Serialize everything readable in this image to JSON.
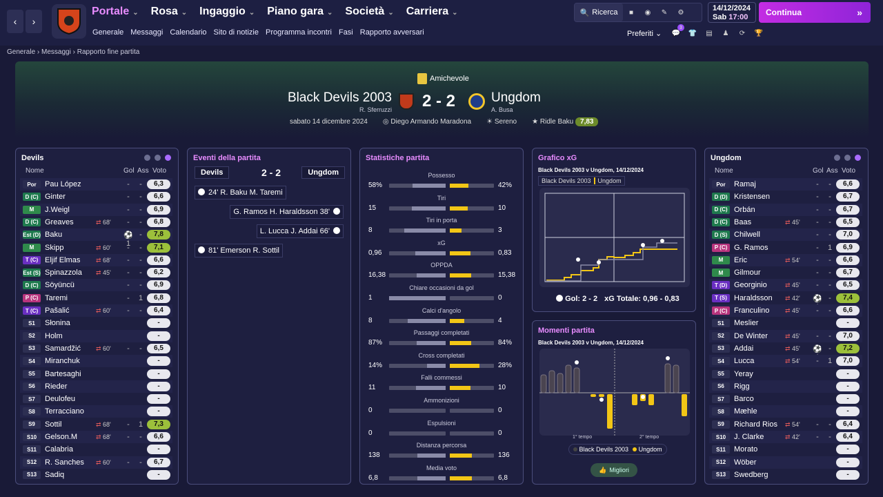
{
  "nav": {
    "menu": [
      "Portale",
      "Rosa",
      "Ingaggio",
      "Piano gara",
      "Società",
      "Carriera"
    ],
    "submenu": [
      "Generale",
      "Messaggi",
      "Calendario",
      "Sito di notizie",
      "Programma incontri",
      "Fasi",
      "Rapporto avversari"
    ],
    "search": "Ricerca",
    "date": "14/12/2024",
    "day": "Sab",
    "time": "17:00",
    "continue": "Continua",
    "preferiti": "Preferiti",
    "badge": "3"
  },
  "breadcrumb": [
    "Generale",
    "Messaggi",
    "Rapporto fine partita"
  ],
  "match": {
    "competition": "Amichevole",
    "home": "Black Devils 2003",
    "home_manager": "R. Sferruzzi",
    "away": "Ungdom",
    "away_manager": "A. Busa",
    "score": "2 - 2",
    "date": "sabato 14 dicembre 2024",
    "stadium": "Diego Armando Maradona",
    "weather": "Sereno",
    "potm": "Ridle Baku",
    "potm_rating": "7,83"
  },
  "headers": {
    "name": "Nome",
    "gol": "Gol",
    "ass": "Ass",
    "voto": "Voto"
  },
  "home_team": {
    "title": "Devils",
    "players": [
      {
        "pos": "Por",
        "cls": "por",
        "name": "Pau López",
        "sub": "",
        "gol": "-",
        "ass": "-",
        "voto": "6,3",
        "g": false
      },
      {
        "pos": "D (C)",
        "cls": "d",
        "name": "Ginter",
        "sub": "",
        "gol": "-",
        "ass": "-",
        "voto": "6,6",
        "g": false
      },
      {
        "pos": "M",
        "cls": "m",
        "name": "J.Weigl",
        "sub": "",
        "gol": "-",
        "ass": "-",
        "voto": "6,9",
        "g": false
      },
      {
        "pos": "D (C)",
        "cls": "d",
        "name": "Greaves",
        "sub": "68'",
        "gol": "-",
        "ass": "-",
        "voto": "6,8",
        "g": false
      },
      {
        "pos": "Est (D)",
        "cls": "d",
        "name": "Baku",
        "sub": "",
        "gol": "⚽1",
        "ass": "-",
        "voto": "7,8",
        "g": true
      },
      {
        "pos": "M",
        "cls": "m",
        "name": "Skipp",
        "sub": "60'",
        "gol": "-",
        "ass": "-",
        "voto": "7,1",
        "g": true
      },
      {
        "pos": "T (C)",
        "cls": "t",
        "name": "Eljif Elmas",
        "sub": "68'",
        "gol": "-",
        "ass": "-",
        "voto": "6,6",
        "g": false
      },
      {
        "pos": "Est (S)",
        "cls": "d",
        "name": "Spinazzola",
        "sub": "45'",
        "gol": "-",
        "ass": "-",
        "voto": "6,2",
        "g": false
      },
      {
        "pos": "D (C)",
        "cls": "d",
        "name": "Söyüncü",
        "sub": "",
        "gol": "-",
        "ass": "-",
        "voto": "6,9",
        "g": false
      },
      {
        "pos": "P (C)",
        "cls": "p",
        "name": "Taremi",
        "sub": "",
        "gol": "-",
        "ass": "1",
        "voto": "6,8",
        "g": false
      },
      {
        "pos": "T (C)",
        "cls": "t",
        "name": "Pašalić",
        "sub": "60'",
        "gol": "-",
        "ass": "-",
        "voto": "6,4",
        "g": false
      },
      {
        "pos": "S1",
        "cls": "s",
        "name": "Słonina",
        "sub": "",
        "gol": "",
        "ass": "",
        "voto": "-",
        "g": false
      },
      {
        "pos": "S2",
        "cls": "s",
        "name": "Holm",
        "sub": "",
        "gol": "",
        "ass": "",
        "voto": "-",
        "g": false
      },
      {
        "pos": "S3",
        "cls": "s",
        "name": "Samardžić",
        "sub": "60'",
        "gol": "-",
        "ass": "-",
        "voto": "6,5",
        "g": false
      },
      {
        "pos": "S4",
        "cls": "s",
        "name": "Miranchuk",
        "sub": "",
        "gol": "",
        "ass": "",
        "voto": "-",
        "g": false
      },
      {
        "pos": "S5",
        "cls": "s",
        "name": "Bartesaghi",
        "sub": "",
        "gol": "",
        "ass": "",
        "voto": "-",
        "g": false
      },
      {
        "pos": "S6",
        "cls": "s",
        "name": "Rieder",
        "sub": "",
        "gol": "",
        "ass": "",
        "voto": "-",
        "g": false
      },
      {
        "pos": "S7",
        "cls": "s",
        "name": "Deulofeu",
        "sub": "",
        "gol": "",
        "ass": "",
        "voto": "-",
        "g": false
      },
      {
        "pos": "S8",
        "cls": "s",
        "name": "Terracciano",
        "sub": "",
        "gol": "",
        "ass": "",
        "voto": "-",
        "g": false
      },
      {
        "pos": "S9",
        "cls": "s",
        "name": "Sottil",
        "sub": "68'",
        "gol": "-",
        "ass": "1",
        "voto": "7,3",
        "g": true
      },
      {
        "pos": "S10",
        "cls": "s",
        "name": "Gelson.M",
        "sub": "68'",
        "gol": "-",
        "ass": "-",
        "voto": "6,6",
        "g": false
      },
      {
        "pos": "S11",
        "cls": "s",
        "name": "Calabria",
        "sub": "",
        "gol": "",
        "ass": "",
        "voto": "-",
        "g": false
      },
      {
        "pos": "S12",
        "cls": "s",
        "name": "R. Sanches",
        "sub": "60'",
        "gol": "-",
        "ass": "-",
        "voto": "6,7",
        "g": false
      },
      {
        "pos": "S13",
        "cls": "s",
        "name": "Sadiq",
        "sub": "",
        "gol": "",
        "ass": "",
        "voto": "-",
        "g": false
      }
    ]
  },
  "away_team": {
    "title": "Ungdom",
    "players": [
      {
        "pos": "Por",
        "cls": "por",
        "name": "Ramaj",
        "sub": "",
        "gol": "-",
        "ass": "-",
        "voto": "6,6",
        "g": false
      },
      {
        "pos": "D (D)",
        "cls": "d",
        "name": "Kristensen",
        "sub": "",
        "gol": "-",
        "ass": "-",
        "voto": "6,7",
        "g": false
      },
      {
        "pos": "D (C)",
        "cls": "d",
        "name": "Orbán",
        "sub": "",
        "gol": "-",
        "ass": "-",
        "voto": "6,7",
        "g": false
      },
      {
        "pos": "D (C)",
        "cls": "d",
        "name": "Baas",
        "sub": "45'",
        "gol": "-",
        "ass": "-",
        "voto": "6,5",
        "g": false
      },
      {
        "pos": "D (S)",
        "cls": "d",
        "name": "Chilwell",
        "sub": "",
        "gol": "-",
        "ass": "-",
        "voto": "7,0",
        "g": false
      },
      {
        "pos": "P (C)",
        "cls": "p",
        "name": "G. Ramos",
        "sub": "",
        "gol": "-",
        "ass": "1",
        "voto": "6,9",
        "g": false
      },
      {
        "pos": "M",
        "cls": "m",
        "name": "Eric",
        "sub": "54'",
        "gol": "-",
        "ass": "-",
        "voto": "6,6",
        "g": false
      },
      {
        "pos": "M",
        "cls": "m",
        "name": "Gilmour",
        "sub": "",
        "gol": "-",
        "ass": "-",
        "voto": "6,7",
        "g": false
      },
      {
        "pos": "T (D)",
        "cls": "t",
        "name": "Georginio",
        "sub": "45'",
        "gol": "-",
        "ass": "-",
        "voto": "6,5",
        "g": false
      },
      {
        "pos": "T (S)",
        "cls": "t",
        "name": "Haraldsson",
        "sub": "42'",
        "gol": "⚽1",
        "ass": "-",
        "voto": "7,4",
        "g": true
      },
      {
        "pos": "P (C)",
        "cls": "p",
        "name": "Franculino",
        "sub": "45'",
        "gol": "-",
        "ass": "-",
        "voto": "6,6",
        "g": false
      },
      {
        "pos": "S1",
        "cls": "s",
        "name": "Meslier",
        "sub": "",
        "gol": "",
        "ass": "",
        "voto": "-",
        "g": false
      },
      {
        "pos": "S2",
        "cls": "s",
        "name": "De Winter",
        "sub": "45'",
        "gol": "-",
        "ass": "-",
        "voto": "7,0",
        "g": false
      },
      {
        "pos": "S3",
        "cls": "s",
        "name": "Addai",
        "sub": "45'",
        "gol": "⚽1",
        "ass": "-",
        "voto": "7,2",
        "g": true
      },
      {
        "pos": "S4",
        "cls": "s",
        "name": "Lucca",
        "sub": "54'",
        "gol": "-",
        "ass": "1",
        "voto": "7,0",
        "g": false
      },
      {
        "pos": "S5",
        "cls": "s",
        "name": "Yeray",
        "sub": "",
        "gol": "",
        "ass": "",
        "voto": "-",
        "g": false
      },
      {
        "pos": "S6",
        "cls": "s",
        "name": "Rigg",
        "sub": "",
        "gol": "",
        "ass": "",
        "voto": "-",
        "g": false
      },
      {
        "pos": "S7",
        "cls": "s",
        "name": "Barco",
        "sub": "",
        "gol": "",
        "ass": "",
        "voto": "-",
        "g": false
      },
      {
        "pos": "S8",
        "cls": "s",
        "name": "Mæhle",
        "sub": "",
        "gol": "",
        "ass": "",
        "voto": "-",
        "g": false
      },
      {
        "pos": "S9",
        "cls": "s",
        "name": "Richard Rios",
        "sub": "54'",
        "gol": "-",
        "ass": "-",
        "voto": "6,4",
        "g": false
      },
      {
        "pos": "S10",
        "cls": "s",
        "name": "J. Clarke",
        "sub": "42'",
        "gol": "-",
        "ass": "-",
        "voto": "6,4",
        "g": false
      },
      {
        "pos": "S11",
        "cls": "s",
        "name": "Morato",
        "sub": "",
        "gol": "",
        "ass": "",
        "voto": "-",
        "g": false
      },
      {
        "pos": "S12",
        "cls": "s",
        "name": "Wöber",
        "sub": "",
        "gol": "",
        "ass": "",
        "voto": "-",
        "g": false
      },
      {
        "pos": "S13",
        "cls": "s",
        "name": "Swedberg",
        "sub": "",
        "gol": "",
        "ass": "",
        "voto": "-",
        "g": false
      }
    ]
  },
  "events": {
    "title": "Eventi della partita",
    "home": "Devils",
    "away": "Ungdom",
    "score": "2 - 2",
    "items": [
      {
        "side": "home",
        "text": "24'  R. Baku  M. Taremi"
      },
      {
        "side": "away",
        "text": "G. Ramos  H. Haraldsson  38'"
      },
      {
        "side": "away",
        "text": "L. Lucca  J. Addai  66'"
      },
      {
        "side": "home",
        "text": "81'  Emerson  R. Sottil"
      }
    ]
  },
  "stats": {
    "title": "Statistiche partita",
    "rows": [
      {
        "label": "Possesso",
        "l": "58%",
        "r": "42%",
        "lv": 58,
        "rv": 42
      },
      {
        "label": "Tiri",
        "l": "15",
        "r": "10",
        "lv": 15,
        "rv": 10
      },
      {
        "label": "Tiri in porta",
        "l": "8",
        "r": "3",
        "lv": 8,
        "rv": 3
      },
      {
        "label": "xG",
        "l": "0,96",
        "r": "0,83",
        "lv": 0.96,
        "rv": 0.83
      },
      {
        "label": "OPPDA",
        "l": "16,38",
        "r": "15,38",
        "lv": 16.38,
        "rv": 15.38
      },
      {
        "label": "Chiare occasioni da gol",
        "l": "1",
        "r": "0",
        "lv": 1,
        "rv": 0
      },
      {
        "label": "Calci d'angolo",
        "l": "8",
        "r": "4",
        "lv": 8,
        "rv": 4
      },
      {
        "label": "Passaggi completati",
        "l": "87%",
        "r": "84%",
        "lv": 87,
        "rv": 84
      },
      {
        "label": "Cross completati",
        "l": "14%",
        "r": "28%",
        "lv": 14,
        "rv": 28
      },
      {
        "label": "Falli commessi",
        "l": "11",
        "r": "10",
        "lv": 11,
        "rv": 10
      },
      {
        "label": "Ammonizioni",
        "l": "0",
        "r": "0",
        "lv": 0,
        "rv": 0
      },
      {
        "label": "Espulsioni",
        "l": "0",
        "r": "0",
        "lv": 0,
        "rv": 0
      },
      {
        "label": "Distanza percorsa",
        "l": "138",
        "r": "136",
        "lv": 138,
        "rv": 136
      },
      {
        "label": "Media voto",
        "l": "6,8",
        "r": "6,8",
        "lv": 6.8,
        "rv": 6.8
      }
    ]
  },
  "xg": {
    "title": "Grafico xG",
    "subtitle": "Black Devils 2003 v Ungdom, 14/12/2024",
    "legend_home": "Black Devils 2003",
    "legend_away": "Ungdom",
    "foot_goals": "Gol: 2 - 2",
    "foot_xg": "xG Totale: 0,96 - 0,83"
  },
  "momenti": {
    "title": "Momenti partita",
    "subtitle": "Black Devils 2003 v Ungdom, 14/12/2024",
    "first": "1° tempo",
    "second": "2° tempo",
    "leg_home": "Black Devils 2003",
    "leg_away": "Ungdom",
    "best": "Migliori"
  },
  "colors": {
    "accent": "#e88cff",
    "yellow": "#f2c616",
    "rating_good": "#9cc03b"
  }
}
